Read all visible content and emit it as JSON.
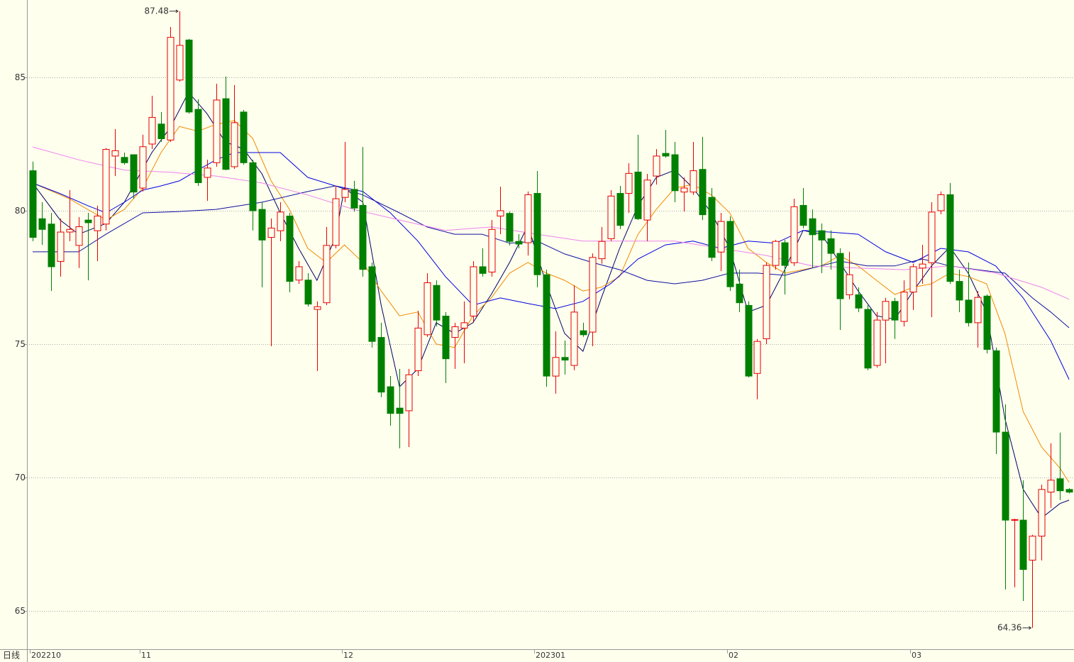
{
  "chart_data": {
    "type": "candlestick",
    "period_label": "日线",
    "categories": [
      "202210",
      null,
      null,
      null,
      null,
      null,
      null,
      null,
      null,
      null,
      null,
      null,
      "11",
      null,
      null,
      null,
      null,
      null,
      null,
      null,
      null,
      null,
      null,
      null,
      null,
      null,
      null,
      null,
      null,
      null,
      null,
      null,
      null,
      null,
      "12",
      null,
      null,
      null,
      null,
      null,
      null,
      null,
      null,
      null,
      null,
      null,
      null,
      null,
      null,
      null,
      null,
      null,
      null,
      null,
      null,
      "202301",
      null,
      null,
      null,
      null,
      null,
      null,
      null,
      null,
      null,
      null,
      null,
      null,
      null,
      null,
      null,
      null,
      null,
      null,
      null,
      null,
      "02",
      null,
      null,
      null,
      null,
      null,
      null,
      null,
      null,
      null,
      null,
      null,
      null,
      null,
      null,
      null,
      null,
      null,
      null,
      null,
      "03",
      null,
      null,
      null,
      null,
      null,
      null,
      null,
      null,
      null,
      null,
      null,
      null,
      null,
      null,
      null,
      null,
      null
    ],
    "open": [
      81.5,
      79.7,
      79.5,
      78.1,
      79.2,
      78.7,
      79.65,
      79.25,
      79.5,
      82.05,
      82.0,
      82.1,
      80.85,
      82.5,
      83.25,
      82.65,
      84.9,
      86.4,
      83.8,
      81.25,
      81.8,
      84.2,
      81.65,
      83.7,
      81.8,
      80.05,
      79.0,
      79.25,
      79.8,
      77.4,
      77.4,
      76.3,
      76.55,
      78.7,
      80.5,
      80.8,
      80.2,
      77.9,
      75.25,
      73.4,
      72.6,
      72.5,
      74.0,
      75.35,
      77.2,
      76.05,
      75.25,
      75.6,
      76.05,
      77.9,
      77.7,
      79.8,
      79.9,
      78.85,
      78.8,
      80.65,
      77.6,
      73.8,
      74.5,
      74.2,
      75.5,
      75.45,
      78.2,
      78.95,
      80.65,
      80.65,
      81.45,
      79.65,
      81.3,
      82.15,
      82.1,
      80.7,
      80.7,
      81.55,
      80.5,
      78.45,
      79.6,
      77.25,
      76.45,
      73.9,
      75.2,
      77.95,
      78.8,
      78.05,
      80.2,
      79.7,
      79.25,
      78.95,
      78.4,
      76.85,
      76.85,
      76.3,
      74.2,
      75.9,
      76.6,
      75.85,
      76.95,
      77.85,
      78.05,
      80.0,
      80.6,
      77.35,
      76.65,
      75.8,
      76.8,
      74.75,
      71.7,
      68.4,
      68.4,
      66.9,
      67.8,
      69.45,
      69.95,
      69.55
    ],
    "high": [
      81.84,
      80.32,
      79.92,
      79.71,
      80.77,
      79.76,
      79.92,
      80.19,
      82.35,
      83.06,
      82.18,
      82.1,
      82.85,
      84.31,
      83.7,
      86.89,
      87.48,
      86.44,
      84.18,
      81.91,
      84.76,
      85.03,
      84.71,
      83.78,
      81.91,
      80.32,
      79.71,
      80.32,
      79.92,
      78.11,
      77.66,
      76.6,
      79.39,
      80.93,
      82.58,
      81.12,
      82.39,
      78.06,
      75.8,
      73.8,
      74.07,
      74.07,
      76.25,
      77.66,
      77.39,
      76.2,
      75.8,
      76.6,
      78.11,
      78.59,
      79.65,
      80.9,
      79.97,
      79.12,
      80.72,
      81.49,
      77.79,
      75.48,
      75.13,
      77.21,
      75.8,
      78.4,
      79.39,
      80.77,
      80.93,
      81.78,
      82.85,
      81.38,
      82.31,
      83.03,
      82.58,
      81.25,
      82.58,
      82.77,
      80.85,
      79.92,
      79.79,
      77.79,
      76.6,
      75.19,
      78.06,
      78.91,
      78.91,
      80.45,
      80.85,
      80.05,
      79.52,
      79.26,
      78.59,
      78.46,
      77.13,
      76.46,
      76.2,
      76.73,
      76.73,
      77.39,
      78.01,
      78.72,
      80.32,
      80.72,
      81.04,
      77.79,
      78.06,
      76.99,
      76.86,
      74.87,
      72.74,
      68.45,
      69.89,
      67.85,
      69.73,
      71.28,
      71.68,
      69.6
    ],
    "low": [
      78.86,
      78.72,
      76.99,
      77.53,
      78.86,
      77.85,
      77.39,
      78.11,
      79.26,
      81.3,
      81.73,
      80.45,
      80.72,
      82.31,
      82.58,
      82.58,
      84.84,
      83.64,
      80.93,
      80.37,
      81.65,
      81.52,
      81.57,
      81.73,
      79.26,
      77.13,
      74.92,
      78.86,
      76.94,
      77.26,
      76.41,
      73.99,
      76.46,
      78.59,
      80.32,
      79.97,
      77.53,
      74.87,
      73.01,
      71.94,
      71.09,
      71.14,
      73.8,
      75.27,
      75.66,
      73.54,
      74.07,
      74.28,
      75.8,
      77.53,
      77.53,
      79.12,
      78.7,
      78.59,
      78.32,
      77.13,
      73.4,
      73.14,
      73.86,
      74.02,
      75.27,
      74.92,
      78.01,
      78.86,
      79.31,
      79.92,
      79.65,
      78.86,
      80.98,
      81.99,
      80.32,
      79.97,
      80.59,
      79.65,
      78.11,
      77.74,
      76.99,
      76.2,
      73.75,
      72.93,
      75.0,
      77.79,
      76.86,
      77.93,
      79.34,
      77.85,
      77.66,
      77.79,
      75.53,
      76.68,
      76.2,
      74.02,
      74.12,
      74.28,
      75.19,
      75.66,
      76.28,
      77.26,
      76.01,
      79.87,
      77.26,
      76.2,
      75.66,
      74.87,
      74.65,
      70.88,
      65.8,
      65.88,
      65.37,
      64.36,
      66.89,
      68.86,
      69.15,
      69.4
    ],
    "close": [
      79.0,
      79.3,
      77.9,
      79.2,
      79.3,
      79.4,
      79.55,
      79.8,
      82.3,
      82.25,
      81.8,
      80.7,
      82.4,
      83.5,
      82.7,
      86.5,
      86.2,
      83.7,
      81.05,
      81.6,
      84.15,
      81.55,
      83.3,
      81.8,
      80.0,
      78.9,
      79.35,
      79.95,
      77.35,
      77.9,
      76.5,
      76.4,
      78.7,
      80.45,
      80.8,
      80.1,
      77.8,
      75.1,
      73.2,
      72.4,
      72.4,
      73.85,
      75.6,
      77.3,
      75.9,
      74.45,
      75.65,
      75.8,
      77.9,
      77.65,
      79.3,
      80.0,
      78.85,
      78.75,
      80.6,
      77.6,
      73.8,
      74.5,
      74.4,
      76.2,
      75.35,
      78.25,
      78.85,
      80.55,
      79.45,
      81.4,
      79.7,
      81.15,
      82.05,
      82.05,
      80.75,
      80.85,
      81.5,
      79.85,
      78.25,
      79.6,
      77.15,
      76.55,
      73.8,
      75.1,
      77.95,
      78.85,
      77.95,
      80.15,
      79.45,
      79.1,
      78.9,
      78.4,
      76.7,
      77.6,
      76.35,
      74.1,
      75.9,
      76.6,
      75.9,
      76.95,
      77.9,
      78.0,
      79.95,
      80.6,
      77.35,
      76.65,
      75.8,
      76.75,
      74.8,
      71.7,
      68.4,
      68.42,
      66.55,
      67.8,
      69.55,
      69.9,
      69.5,
      69.45
    ],
    "up_color": "#e60000",
    "down_color": "#008000",
    "ma": [
      {
        "color": "#000066",
        "x": [
          0,
          3,
          5,
          8,
          10,
          13,
          15,
          17,
          19,
          21,
          23,
          25,
          27,
          29,
          31,
          33,
          34,
          36,
          38,
          40,
          42,
          44,
          46,
          48,
          50,
          52,
          54,
          56,
          58,
          60,
          62,
          64,
          66,
          68,
          70,
          72,
          74,
          76,
          78,
          80,
          82,
          84,
          86,
          88,
          90,
          92,
          94,
          96,
          98,
          100,
          102,
          104,
          106,
          108,
          110,
          112,
          113
        ],
        "values": [
          81.04,
          79.65,
          79.12,
          79.52,
          80.32,
          82.18,
          83.11,
          84.44,
          83.64,
          82.58,
          82.31,
          81.38,
          79.92,
          78.59,
          77.39,
          78.99,
          80.85,
          80.32,
          76.46,
          73.4,
          74.07,
          75.8,
          75.4,
          75.8,
          76.86,
          78.06,
          79.44,
          77.26,
          75.4,
          74.73,
          76.73,
          78.59,
          80.19,
          81.25,
          81.52,
          80.85,
          79.92,
          78.59,
          76.2,
          76.46,
          77.79,
          79.26,
          79.12,
          78.06,
          76.99,
          76.06,
          75.93,
          76.99,
          77.93,
          78.64,
          77.66,
          76.2,
          72.21,
          69.55,
          68.48,
          69.02,
          69.15
        ]
      },
      {
        "color": "#f08c00",
        "x": [
          0,
          4,
          8,
          10,
          12,
          14,
          16,
          18,
          20,
          22,
          24,
          26,
          28,
          30,
          32,
          34,
          36,
          38,
          40,
          42,
          44,
          46,
          48,
          50,
          52,
          54,
          56,
          58,
          60,
          62,
          64,
          66,
          68,
          70,
          72,
          74,
          76,
          78,
          80,
          82,
          84,
          86,
          88,
          90,
          92,
          94,
          96,
          98,
          100,
          102,
          104,
          106,
          108,
          110,
          112,
          113
        ],
        "values": [
          81.04,
          80.45,
          79.65,
          80.05,
          80.85,
          82.18,
          83.16,
          82.98,
          83.24,
          83.38,
          82.71,
          81.12,
          80.05,
          78.59,
          78.06,
          78.72,
          78.06,
          76.99,
          76.06,
          76.2,
          75.0,
          74.87,
          76.06,
          76.73,
          77.66,
          78.06,
          77.66,
          77.39,
          76.99,
          77.13,
          77.53,
          79.12,
          80.05,
          80.85,
          80.98,
          80.59,
          79.92,
          78.59,
          78.06,
          77.66,
          77.79,
          77.93,
          78.32,
          77.93,
          77.39,
          76.86,
          77.13,
          77.26,
          77.66,
          77.53,
          77.26,
          75.4,
          72.47,
          71.14,
          70.35,
          69.81
        ]
      },
      {
        "color": "#0000e0",
        "x": [
          0,
          3,
          6,
          8,
          10,
          12,
          14,
          16,
          18,
          20,
          22,
          24,
          27,
          30,
          33,
          36,
          39,
          42,
          45,
          48,
          51,
          54,
          57,
          60,
          63,
          66,
          69,
          72,
          75,
          78,
          81,
          84,
          87,
          90,
          93,
          96,
          99,
          102,
          105,
          108,
          111,
          113
        ],
        "values": [
          81.04,
          80.64,
          80.19,
          79.92,
          80.32,
          80.77,
          80.93,
          81.12,
          81.52,
          81.91,
          82.18,
          82.18,
          82.18,
          81.25,
          80.93,
          80.72,
          79.92,
          78.86,
          77.53,
          76.46,
          76.73,
          76.52,
          76.33,
          76.6,
          77.26,
          78.19,
          78.72,
          78.86,
          78.59,
          78.86,
          78.78,
          79.26,
          79.2,
          79.12,
          78.46,
          78.06,
          78.59,
          78.46,
          77.93,
          76.73,
          75.13,
          73.67
        ]
      },
      {
        "color": "#1010a0",
        "x": [
          0,
          5,
          8,
          12,
          16,
          20,
          25,
          30,
          33,
          36,
          40,
          43,
          46,
          49,
          52,
          55,
          58,
          61,
          64,
          67,
          70,
          73,
          76,
          79,
          82,
          85,
          88,
          91,
          94,
          97,
          100,
          103,
          106,
          109,
          111,
          113
        ],
        "values": [
          78.46,
          78.46,
          79.12,
          79.92,
          79.97,
          80.05,
          80.32,
          80.72,
          80.93,
          80.59,
          79.92,
          79.39,
          79.12,
          79.12,
          78.78,
          78.86,
          78.38,
          78.06,
          77.79,
          77.39,
          77.26,
          77.39,
          77.66,
          77.66,
          77.58,
          77.85,
          78.11,
          77.93,
          77.93,
          78.19,
          77.93,
          77.79,
          77.66,
          76.73,
          76.2,
          75.61
        ]
      },
      {
        "color": "#ee82ee",
        "x": [
          0,
          5,
          10,
          15,
          20,
          25,
          30,
          35,
          40,
          45,
          50,
          55,
          60,
          65,
          70,
          75,
          80,
          85,
          90,
          95,
          100,
          105,
          110,
          113
        ],
        "values": [
          82.39,
          81.91,
          81.52,
          81.44,
          81.3,
          81.04,
          80.59,
          80.05,
          79.65,
          79.26,
          79.39,
          79.12,
          78.86,
          78.86,
          78.86,
          78.59,
          78.32,
          77.93,
          77.85,
          77.79,
          77.93,
          77.66,
          77.13,
          76.68
        ]
      }
    ],
    "ylim": [
      63.56,
      87.9
    ],
    "yticks": [
      65,
      70,
      75,
      80,
      85
    ],
    "grid": true,
    "max_index": 16,
    "min_index": 109
  }
}
